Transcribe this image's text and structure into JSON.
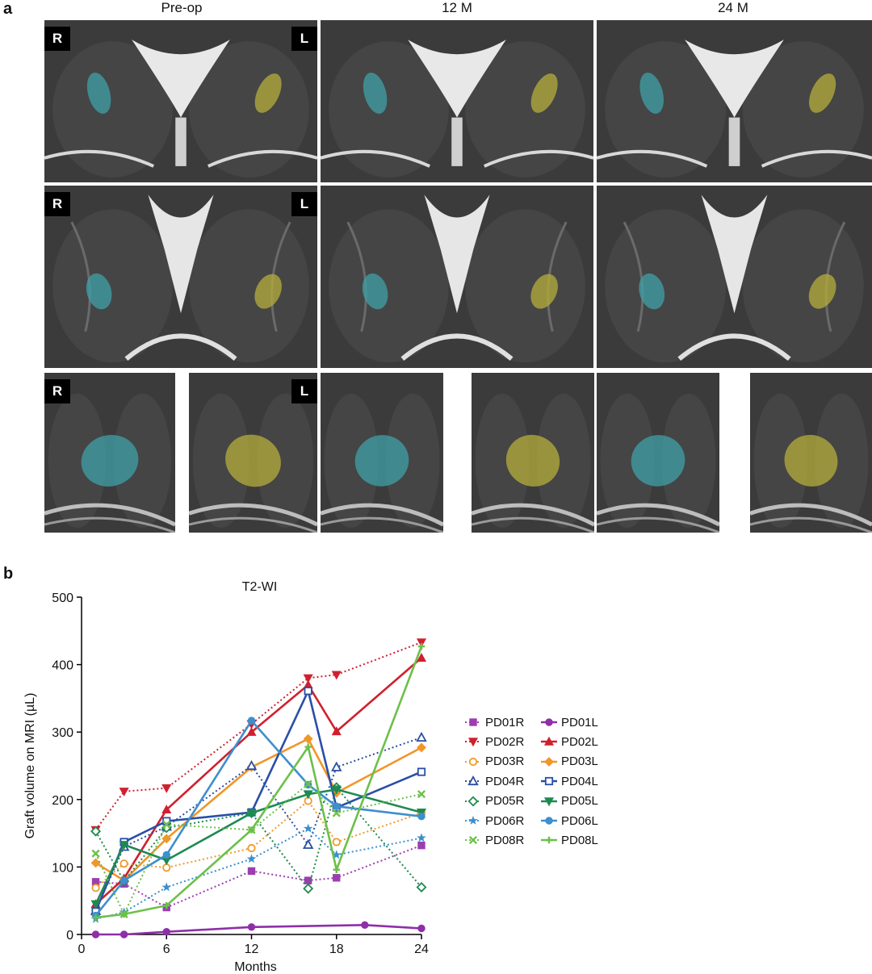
{
  "panel_a": {
    "letter": "a",
    "columns": [
      "Pre-op",
      "12 M",
      "24 M"
    ],
    "side_labels": {
      "right": "R",
      "left": "L"
    },
    "graft_colors": {
      "right": "#3fa0a8",
      "left": "#b5ad3c"
    }
  },
  "panel_b": {
    "letter": "b"
  },
  "chart_data": {
    "type": "line",
    "title": "T2-WI",
    "xlabel": "Months",
    "ylabel": "Graft volume on MRI (µL)",
    "xlim": [
      0,
      24
    ],
    "ylim": [
      0,
      500
    ],
    "xticks": [
      0,
      6,
      12,
      18,
      24
    ],
    "yticks": [
      0,
      100,
      200,
      300,
      400,
      500
    ],
    "legend_placement": "right",
    "series": [
      {
        "name": "PD01R",
        "color": "#9b3fb0",
        "dash": true,
        "marker": "square",
        "x": [
          1,
          3,
          6,
          12,
          16,
          18,
          24
        ],
        "y": [
          78,
          75,
          40,
          94,
          80,
          84,
          132
        ]
      },
      {
        "name": "PD01L",
        "color": "#8e2fa8",
        "dash": false,
        "marker": "circle",
        "x": [
          1,
          3,
          6,
          12,
          20,
          24
        ],
        "y": [
          0,
          0,
          4,
          11,
          14,
          9
        ]
      },
      {
        "name": "PD02R",
        "color": "#d02030",
        "dash": true,
        "marker": "triangle-down",
        "x": [
          1,
          3,
          6,
          12,
          16,
          18,
          24
        ],
        "y": [
          155,
          212,
          217,
          312,
          380,
          385,
          433
        ]
      },
      {
        "name": "PD02L",
        "color": "#d0202e",
        "dash": false,
        "marker": "triangle-up",
        "x": [
          1,
          3,
          6,
          12,
          16,
          18,
          24
        ],
        "y": [
          45,
          83,
          185,
          300,
          370,
          301,
          410
        ]
      },
      {
        "name": "PD03R",
        "color": "#ef9a2a",
        "dash": true,
        "marker": "circle-open",
        "x": [
          1,
          3,
          6,
          12,
          16,
          18,
          24
        ],
        "y": [
          69,
          105,
          99,
          128,
          198,
          137,
          180
        ]
      },
      {
        "name": "PD03L",
        "color": "#f0962a",
        "dash": false,
        "marker": "diamond",
        "x": [
          1,
          3,
          6,
          12,
          16,
          18,
          24
        ],
        "y": [
          106,
          80,
          142,
          248,
          290,
          210,
          277
        ]
      },
      {
        "name": "PD04R",
        "color": "#2b4fa0",
        "dash": true,
        "marker": "triangle-open",
        "x": [
          1,
          3,
          6,
          12,
          16,
          18,
          24
        ],
        "y": [
          35,
          130,
          160,
          250,
          133,
          248,
          292
        ]
      },
      {
        "name": "PD04L",
        "color": "#2a4ea8",
        "dash": false,
        "marker": "square-open",
        "x": [
          1,
          3,
          6,
          12,
          16,
          18,
          24
        ],
        "y": [
          34,
          137,
          168,
          181,
          361,
          188,
          241
        ]
      },
      {
        "name": "PD05R",
        "color": "#1f8a50",
        "dash": true,
        "marker": "diamond-open",
        "x": [
          1,
          3,
          6,
          12,
          16,
          18,
          24
        ],
        "y": [
          153,
          79,
          158,
          180,
          68,
          218,
          70
        ]
      },
      {
        "name": "PD05L",
        "color": "#1d8a52",
        "dash": false,
        "marker": "triangle-down",
        "x": [
          1,
          3,
          6,
          12,
          16,
          18,
          24
        ],
        "y": [
          45,
          133,
          110,
          180,
          208,
          215,
          181
        ]
      },
      {
        "name": "PD06R",
        "color": "#3b8fd0",
        "dash": true,
        "marker": "star",
        "x": [
          1,
          3,
          6,
          12,
          16,
          18,
          24
        ],
        "y": [
          23,
          33,
          70,
          112,
          157,
          118,
          143
        ]
      },
      {
        "name": "PD06L",
        "color": "#3d8fce",
        "dash": false,
        "marker": "circle",
        "x": [
          1,
          3,
          6,
          12,
          16,
          18,
          24
        ],
        "y": [
          28,
          80,
          118,
          317,
          222,
          190,
          175
        ]
      },
      {
        "name": "PD08R",
        "color": "#6cc04a",
        "dash": true,
        "marker": "x",
        "x": [
          1,
          3,
          6,
          12,
          16,
          18,
          24
        ],
        "y": [
          120,
          30,
          163,
          155,
          223,
          180,
          208
        ]
      },
      {
        "name": "PD08L",
        "color": "#6cc04a",
        "dash": false,
        "marker": "plus",
        "x": [
          1,
          3,
          6,
          12,
          16,
          18,
          24
        ],
        "y": [
          25,
          30,
          43,
          155,
          278,
          96,
          427
        ]
      }
    ]
  }
}
